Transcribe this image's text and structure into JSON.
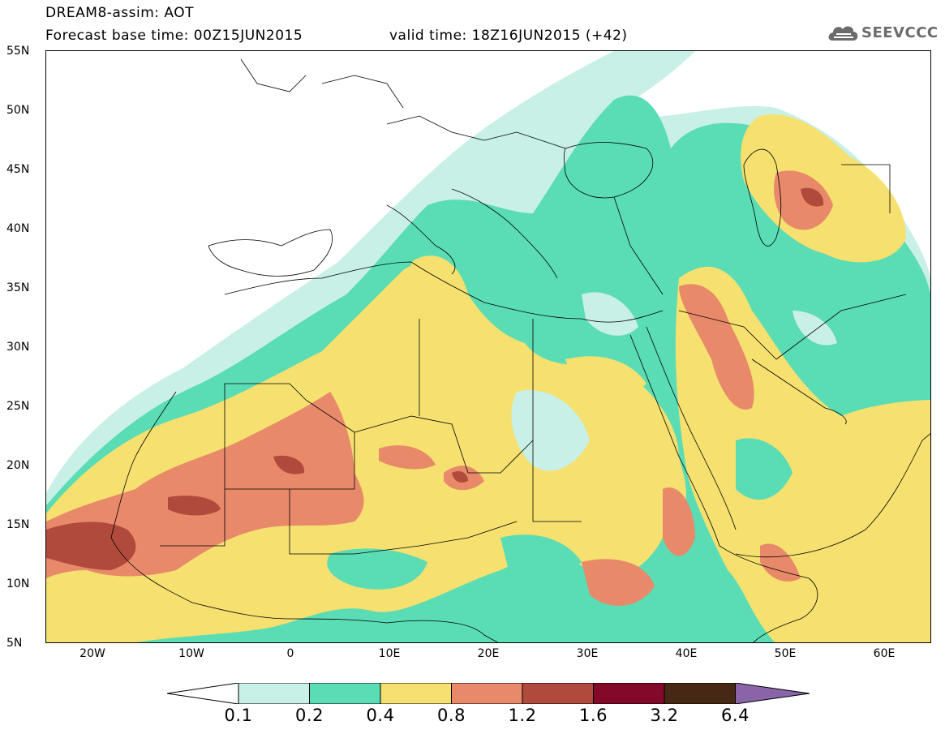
{
  "header": {
    "title": "DREAM8-assim: AOT",
    "base_time": "Forecast base time: 00Z15JUN2015",
    "valid_time": "valid time: 18Z16JUN2015 (+42)",
    "logo_text": "SEEVCCC"
  },
  "map": {
    "lat_labels": [
      "55N",
      "50N",
      "45N",
      "40N",
      "35N",
      "30N",
      "25N",
      "20N",
      "15N",
      "10N",
      "5N"
    ],
    "lon_labels": [
      "20W",
      "10W",
      "0",
      "10E",
      "20E",
      "30E",
      "40E",
      "50E",
      "60E"
    ]
  },
  "colorbar": {
    "labels": [
      "0.1",
      "0.2",
      "0.4",
      "0.8",
      "1.2",
      "1.6",
      "3.2",
      "6.4"
    ],
    "colors": [
      "#ffffff",
      "#c8f0e6",
      "#5adcb4",
      "#f5e070",
      "#e8896a",
      "#b04a3c",
      "#820a28",
      "#462814",
      "#8a64a8"
    ]
  }
}
